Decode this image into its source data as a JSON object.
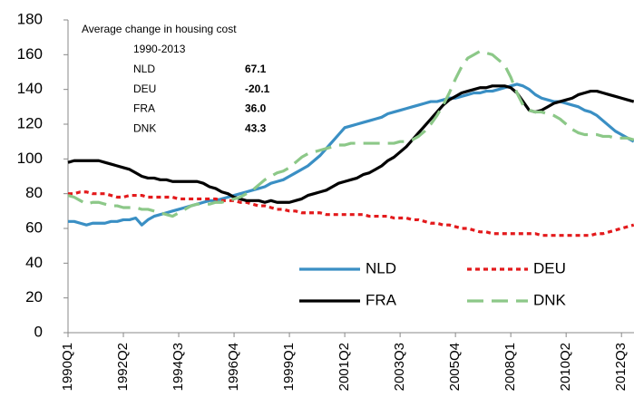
{
  "chart_data": {
    "type": "line",
    "categories": [
      "1990Q1",
      null,
      null,
      null,
      null,
      null,
      null,
      null,
      null,
      "1992Q2",
      null,
      null,
      null,
      null,
      null,
      null,
      null,
      null,
      "1994Q3",
      null,
      null,
      null,
      null,
      null,
      null,
      null,
      null,
      "1996Q4",
      null,
      null,
      null,
      null,
      null,
      null,
      null,
      null,
      "1999Q1",
      null,
      null,
      null,
      null,
      null,
      null,
      null,
      null,
      "2001Q2",
      null,
      null,
      null,
      null,
      null,
      null,
      null,
      null,
      "2003Q3",
      null,
      null,
      null,
      null,
      null,
      null,
      null,
      null,
      "2005Q4",
      null,
      null,
      null,
      null,
      null,
      null,
      null,
      null,
      "2008Q1",
      null,
      null,
      null,
      null,
      null,
      null,
      null,
      null,
      "2010Q2",
      null,
      null,
      null,
      null,
      null,
      null,
      null,
      null,
      "2012Q3",
      null,
      null
    ],
    "series": [
      {
        "name": "NLD",
        "color": "#3a8fc4",
        "dash": "solid",
        "values": [
          64,
          64,
          63,
          62,
          63,
          63,
          63,
          64,
          64,
          65,
          65,
          66,
          62,
          65,
          67,
          68,
          69,
          70,
          71,
          72,
          73,
          74,
          75,
          76,
          76,
          77,
          78,
          79,
          80,
          81,
          82,
          83,
          84,
          86,
          87,
          88,
          90,
          92,
          94,
          96,
          99,
          102,
          106,
          110,
          114,
          118,
          119,
          120,
          121,
          122,
          123,
          124,
          126,
          127,
          128,
          129,
          130,
          131,
          132,
          133,
          133,
          134,
          135,
          135,
          136,
          137,
          138,
          138,
          139,
          139,
          140,
          141,
          142,
          143,
          142,
          140,
          137,
          135,
          134,
          133,
          133,
          132,
          131,
          130,
          128,
          127,
          125,
          122,
          119,
          116,
          114,
          112,
          110
        ]
      },
      {
        "name": "DEU",
        "color": "#e31a1c",
        "dash": "dot",
        "values": [
          80,
          80,
          81,
          81,
          80,
          80,
          80,
          79,
          78,
          78,
          79,
          79,
          79,
          78,
          78,
          78,
          78,
          78,
          77,
          77,
          77,
          77,
          77,
          77,
          77,
          76,
          76,
          76,
          75,
          75,
          74,
          73,
          73,
          72,
          71,
          71,
          70,
          70,
          69,
          69,
          69,
          69,
          68,
          68,
          68,
          68,
          68,
          68,
          68,
          67,
          67,
          67,
          67,
          66,
          66,
          66,
          65,
          65,
          64,
          63,
          63,
          62,
          62,
          61,
          60,
          60,
          59,
          58,
          58,
          57,
          57,
          57,
          57,
          57,
          57,
          57,
          57,
          56,
          56,
          56,
          56,
          56,
          56,
          56,
          56,
          56,
          57,
          57,
          58,
          59,
          60,
          61,
          62
        ]
      },
      {
        "name": "FRA",
        "color": "#000000",
        "dash": "solid",
        "values": [
          98,
          99,
          99,
          99,
          99,
          99,
          98,
          97,
          96,
          95,
          94,
          92,
          90,
          89,
          89,
          88,
          88,
          87,
          87,
          87,
          87,
          87,
          86,
          84,
          83,
          81,
          80,
          78,
          77,
          76,
          76,
          76,
          75,
          76,
          75,
          75,
          75,
          76,
          77,
          79,
          80,
          81,
          82,
          84,
          86,
          87,
          88,
          89,
          91,
          92,
          94,
          96,
          99,
          101,
          104,
          107,
          111,
          115,
          119,
          123,
          127,
          131,
          134,
          136,
          138,
          139,
          140,
          141,
          141,
          142,
          142,
          142,
          141,
          138,
          133,
          128,
          127,
          128,
          130,
          132,
          133,
          134,
          135,
          137,
          138,
          139,
          139,
          138,
          137,
          136,
          135,
          134,
          133
        ]
      },
      {
        "name": "DNK",
        "color": "#8cc888",
        "dash": "dash",
        "values": [
          79,
          78,
          76,
          74,
          75,
          75,
          74,
          73,
          73,
          72,
          72,
          72,
          71,
          71,
          70,
          69,
          68,
          67,
          69,
          71,
          73,
          74,
          74,
          74,
          75,
          75,
          76,
          77,
          78,
          80,
          82,
          85,
          88,
          90,
          92,
          93,
          95,
          98,
          101,
          103,
          104,
          105,
          106,
          107,
          108,
          108,
          109,
          109,
          109,
          109,
          109,
          109,
          109,
          109,
          110,
          110,
          111,
          113,
          116,
          120,
          125,
          131,
          138,
          146,
          153,
          158,
          160,
          162,
          161,
          160,
          157,
          154,
          147,
          138,
          131,
          128,
          127,
          127,
          126,
          125,
          123,
          120,
          117,
          115,
          114,
          114,
          114,
          113,
          113,
          112,
          112,
          112,
          111
        ]
      }
    ],
    "ylim": [
      0,
      180
    ],
    "yticks": [
      0,
      20,
      40,
      60,
      80,
      100,
      120,
      140,
      160,
      180
    ],
    "grid": false,
    "legend": "lower right",
    "inset": {
      "title": "Average change in housing cost",
      "period": "1990-2013",
      "rows": [
        [
          "NLD",
          "67.1"
        ],
        [
          "DEU",
          "-20.1"
        ],
        [
          "FRA",
          "36.0"
        ],
        [
          "DNK",
          "43.3"
        ]
      ]
    }
  }
}
